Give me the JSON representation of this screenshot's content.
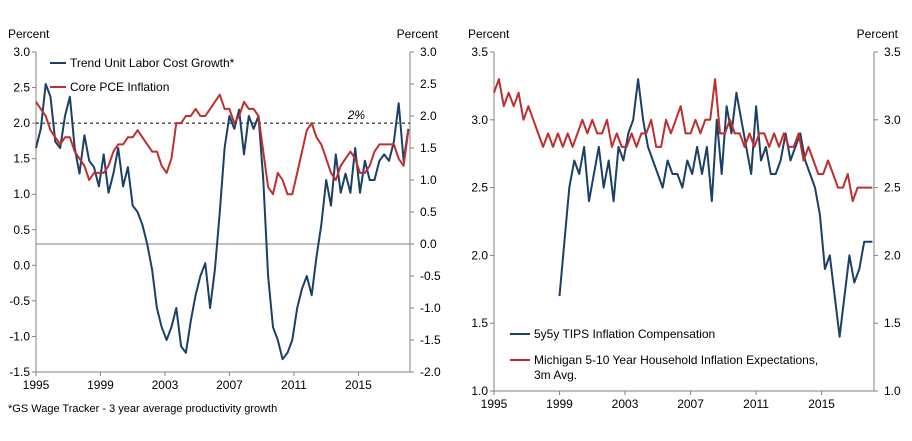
{
  "colors": {
    "series_a": "#1b3f66",
    "series_b": "#bf2f2f",
    "axis": "#808080",
    "reference": "#000000"
  },
  "chart_data": [
    {
      "type": "line",
      "ylabel_left": "Percent",
      "ylabel_right": "Percent",
      "xlim": [
        1995,
        2018.2
      ],
      "ylim_left": [
        -1.5,
        3.0
      ],
      "ylim_right": [
        -2.0,
        3.0
      ],
      "xticks": [
        "1995",
        "1999",
        "2003",
        "2007",
        "2011",
        "2015"
      ],
      "xtick_values": [
        1995,
        1999,
        2003,
        2007,
        2011,
        2015
      ],
      "yticks_left": [
        "-1.5",
        "-1.0",
        "-0.5",
        "0.0",
        "0.5",
        "1.0",
        "1.5",
        "2.0",
        "2.5",
        "3.0"
      ],
      "yticks_left_values": [
        -1.5,
        -1.0,
        -0.5,
        0.0,
        0.5,
        1.0,
        1.5,
        2.0,
        2.5,
        3.0
      ],
      "yticks_right": [
        "-2.0",
        "-1.5",
        "-1.0",
        "-0.5",
        "0.0",
        "0.5",
        "1.0",
        "1.5",
        "2.0",
        "2.5",
        "3.0"
      ],
      "yticks_right_values": [
        -2.0,
        -1.5,
        -1.0,
        -0.5,
        0.0,
        0.5,
        1.0,
        1.5,
        2.0,
        2.5,
        3.0
      ],
      "zero_line_right": 0.0,
      "reference_line": {
        "value": 2.0,
        "axis": "left",
        "label": "2%"
      },
      "footnote": "*GS Wage Tracker - 3 year average productivity growth",
      "series": [
        {
          "name": "Trend Unit Labor Cost Growth*",
          "axis": "right",
          "color": "#1b3f66",
          "x": [
            1995.0,
            1995.3,
            1995.6,
            1995.9,
            1996.2,
            1996.5,
            1996.8,
            1997.1,
            1997.4,
            1997.7,
            1998.0,
            1998.3,
            1998.6,
            1998.9,
            1999.2,
            1999.5,
            1999.8,
            2000.1,
            2000.4,
            2000.7,
            2001.0,
            2001.3,
            2001.6,
            2001.9,
            2002.2,
            2002.5,
            2002.8,
            2003.1,
            2003.4,
            2003.7,
            2004.0,
            2004.3,
            2004.6,
            2004.9,
            2005.2,
            2005.5,
            2005.8,
            2006.1,
            2006.4,
            2006.7,
            2007.0,
            2007.3,
            2007.6,
            2007.9,
            2008.2,
            2008.5,
            2008.8,
            2009.1,
            2009.4,
            2009.7,
            2010.0,
            2010.3,
            2010.6,
            2010.9,
            2011.2,
            2011.5,
            2011.8,
            2012.1,
            2012.4,
            2012.7,
            2013.0,
            2013.3,
            2013.6,
            2013.9,
            2014.2,
            2014.5,
            2014.8,
            2015.1,
            2015.4,
            2015.7,
            2016.0,
            2016.3,
            2016.6,
            2016.9,
            2017.2,
            2017.5,
            2017.8,
            2018.1
          ],
          "values": [
            1.5,
            1.8,
            2.5,
            2.3,
            1.6,
            1.5,
            2.0,
            2.3,
            1.5,
            1.1,
            1.7,
            1.3,
            1.2,
            0.9,
            1.4,
            0.8,
            1.1,
            1.5,
            0.9,
            1.2,
            0.6,
            0.5,
            0.3,
            0.0,
            -0.4,
            -1.0,
            -1.3,
            -1.5,
            -1.3,
            -1.0,
            -1.6,
            -1.7,
            -1.2,
            -0.8,
            -0.5,
            -0.3,
            -1.0,
            -0.4,
            0.5,
            1.5,
            2.0,
            1.8,
            2.1,
            1.4,
            2.0,
            1.8,
            2.0,
            1.0,
            -0.5,
            -1.3,
            -1.5,
            -1.8,
            -1.7,
            -1.5,
            -1.0,
            -0.7,
            -0.5,
            -0.8,
            -0.2,
            0.3,
            1.0,
            0.6,
            1.4,
            0.8,
            1.1,
            0.8,
            1.5,
            0.8,
            1.3,
            1.0,
            1.0,
            1.3,
            1.4,
            1.3,
            1.6,
            2.2,
            1.3,
            1.8
          ]
        },
        {
          "name": "Core PCE Inflation",
          "axis": "left",
          "color": "#bf2f2f",
          "x": [
            1995.0,
            1995.3,
            1995.6,
            1995.9,
            1996.2,
            1996.5,
            1996.8,
            1997.1,
            1997.4,
            1997.7,
            1998.0,
            1998.3,
            1998.6,
            1998.9,
            1999.2,
            1999.5,
            1999.8,
            2000.1,
            2000.4,
            2000.7,
            2001.0,
            2001.3,
            2001.6,
            2001.9,
            2002.2,
            2002.5,
            2002.8,
            2003.1,
            2003.4,
            2003.7,
            2004.0,
            2004.3,
            2004.6,
            2004.9,
            2005.2,
            2005.5,
            2005.8,
            2006.1,
            2006.4,
            2006.7,
            2007.0,
            2007.3,
            2007.6,
            2007.9,
            2008.2,
            2008.5,
            2008.8,
            2009.1,
            2009.4,
            2009.7,
            2010.0,
            2010.3,
            2010.6,
            2010.9,
            2011.2,
            2011.5,
            2011.8,
            2012.1,
            2012.4,
            2012.7,
            2013.0,
            2013.3,
            2013.6,
            2013.9,
            2014.2,
            2014.5,
            2014.8,
            2015.1,
            2015.4,
            2015.7,
            2016.0,
            2016.3,
            2016.6,
            2016.9,
            2017.2,
            2017.5,
            2017.8,
            2018.1
          ],
          "values": [
            2.3,
            2.2,
            2.1,
            1.9,
            1.8,
            1.7,
            1.8,
            1.8,
            1.6,
            1.5,
            1.4,
            1.2,
            1.3,
            1.3,
            1.3,
            1.4,
            1.6,
            1.7,
            1.7,
            1.8,
            1.8,
            1.9,
            1.8,
            1.7,
            1.6,
            1.6,
            1.4,
            1.3,
            1.5,
            2.0,
            2.0,
            2.1,
            2.1,
            2.2,
            2.1,
            2.1,
            2.2,
            2.3,
            2.4,
            2.2,
            2.2,
            2.0,
            2.1,
            2.3,
            2.2,
            2.2,
            2.1,
            1.6,
            1.1,
            1.0,
            1.3,
            1.2,
            1.0,
            1.0,
            1.3,
            1.6,
            1.9,
            2.0,
            1.8,
            1.7,
            1.5,
            1.3,
            1.2,
            1.4,
            1.5,
            1.6,
            1.5,
            1.3,
            1.3,
            1.4,
            1.6,
            1.7,
            1.7,
            1.7,
            1.7,
            1.5,
            1.4,
            1.9
          ]
        }
      ]
    },
    {
      "type": "line",
      "ylabel_left": "Percent",
      "ylabel_right": "Percent",
      "xlim": [
        1995,
        2018.2
      ],
      "ylim": [
        1.0,
        3.5
      ],
      "xticks": [
        "1995",
        "1999",
        "2003",
        "2007",
        "2011",
        "2015"
      ],
      "xtick_values": [
        1995,
        1999,
        2003,
        2007,
        2011,
        2015
      ],
      "yticks": [
        "1.0",
        "1.5",
        "2.0",
        "2.5",
        "3.0",
        "3.5"
      ],
      "yticks_values": [
        1.0,
        1.5,
        2.0,
        2.5,
        3.0,
        3.5
      ],
      "series": [
        {
          "name": "5y5y TIPS Inflation Compensation",
          "color": "#1b3f66",
          "x": [
            1999.0,
            1999.3,
            1999.6,
            1999.9,
            2000.2,
            2000.5,
            2000.8,
            2001.1,
            2001.4,
            2001.7,
            2002.0,
            2002.3,
            2002.6,
            2002.9,
            2003.2,
            2003.5,
            2003.8,
            2004.1,
            2004.4,
            2004.7,
            2005.0,
            2005.3,
            2005.6,
            2005.9,
            2006.2,
            2006.5,
            2006.8,
            2007.1,
            2007.4,
            2007.7,
            2008.0,
            2008.3,
            2008.6,
            2008.9,
            2009.2,
            2009.5,
            2009.8,
            2010.1,
            2010.4,
            2010.7,
            2011.0,
            2011.3,
            2011.6,
            2011.9,
            2012.2,
            2012.5,
            2012.8,
            2013.1,
            2013.4,
            2013.7,
            2014.0,
            2014.3,
            2014.6,
            2014.9,
            2015.2,
            2015.5,
            2015.8,
            2016.1,
            2016.4,
            2016.7,
            2017.0,
            2017.3,
            2017.6,
            2017.9,
            2018.1
          ],
          "values": [
            1.7,
            2.1,
            2.5,
            2.7,
            2.6,
            2.8,
            2.4,
            2.6,
            2.8,
            2.5,
            2.7,
            2.4,
            2.8,
            2.7,
            2.9,
            3.0,
            3.3,
            3.0,
            2.8,
            2.7,
            2.6,
            2.5,
            2.7,
            2.6,
            2.6,
            2.5,
            2.7,
            2.6,
            2.8,
            2.6,
            2.8,
            2.4,
            3.0,
            2.6,
            3.1,
            2.9,
            3.2,
            3.0,
            2.8,
            2.6,
            3.1,
            2.7,
            2.8,
            2.6,
            2.6,
            2.7,
            2.9,
            2.7,
            2.8,
            2.9,
            2.7,
            2.6,
            2.5,
            2.3,
            1.9,
            2.0,
            1.7,
            1.4,
            1.7,
            2.0,
            1.8,
            1.9,
            2.1,
            2.1,
            2.1
          ]
        },
        {
          "name": "Michigan 5-10 Year Household Inflation Expectations, 3m Avg.",
          "color": "#bf2f2f",
          "x": [
            1995.0,
            1995.3,
            1995.6,
            1995.9,
            1996.2,
            1996.5,
            1996.8,
            1997.1,
            1997.4,
            1997.7,
            1998.0,
            1998.3,
            1998.6,
            1998.9,
            1999.2,
            1999.5,
            1999.8,
            2000.1,
            2000.4,
            2000.7,
            2001.0,
            2001.3,
            2001.6,
            2001.9,
            2002.2,
            2002.5,
            2002.8,
            2003.1,
            2003.4,
            2003.7,
            2004.0,
            2004.3,
            2004.6,
            2004.9,
            2005.2,
            2005.5,
            2005.8,
            2006.1,
            2006.4,
            2006.7,
            2007.0,
            2007.3,
            2007.6,
            2007.9,
            2008.2,
            2008.5,
            2008.8,
            2009.1,
            2009.4,
            2009.7,
            2010.0,
            2010.3,
            2010.6,
            2010.9,
            2011.2,
            2011.5,
            2011.8,
            2012.1,
            2012.4,
            2012.7,
            2013.0,
            2013.3,
            2013.6,
            2013.9,
            2014.2,
            2014.5,
            2014.8,
            2015.1,
            2015.4,
            2015.7,
            2016.0,
            2016.3,
            2016.6,
            2016.9,
            2017.2,
            2017.5,
            2017.8,
            2018.1
          ],
          "values": [
            3.2,
            3.3,
            3.1,
            3.2,
            3.1,
            3.2,
            3.0,
            3.1,
            3.0,
            2.9,
            2.8,
            2.9,
            2.8,
            2.9,
            2.8,
            2.9,
            2.8,
            2.9,
            3.0,
            2.9,
            3.0,
            2.9,
            2.9,
            3.0,
            2.8,
            2.9,
            2.8,
            2.8,
            2.9,
            2.8,
            2.9,
            2.9,
            3.0,
            2.8,
            2.8,
            3.0,
            2.9,
            3.0,
            3.1,
            2.9,
            2.9,
            3.0,
            2.9,
            3.0,
            3.0,
            3.3,
            2.9,
            2.9,
            3.0,
            2.9,
            2.9,
            2.8,
            2.9,
            2.8,
            2.9,
            2.9,
            2.8,
            2.9,
            2.8,
            2.9,
            2.8,
            2.8,
            2.9,
            2.7,
            2.8,
            2.7,
            2.6,
            2.6,
            2.7,
            2.6,
            2.5,
            2.5,
            2.6,
            2.4,
            2.5,
            2.5,
            2.5,
            2.5
          ]
        }
      ]
    }
  ]
}
